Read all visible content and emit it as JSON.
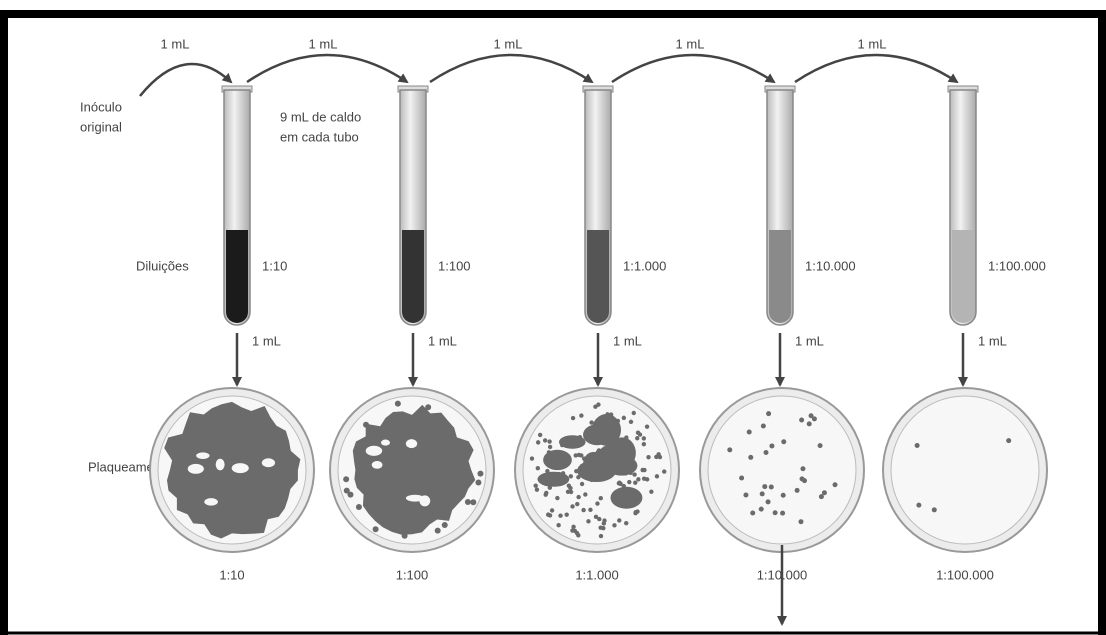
{
  "transfers": [
    "1 mL",
    "1 mL",
    "1 mL",
    "1 mL",
    "1 mL"
  ],
  "inoculum": [
    "Inóculo",
    "original"
  ],
  "broth_note": [
    "9 mL de caldo",
    "em cada tubo"
  ],
  "dilutions_label": "Diluições",
  "tubes": [
    {
      "label": "1:10",
      "transfer": "1 mL"
    },
    {
      "label": "1:100",
      "transfer": "1 mL"
    },
    {
      "label": "1:1.000",
      "transfer": "1 mL"
    },
    {
      "label": "1:10.000",
      "transfer": "1 mL"
    },
    {
      "label": "1:100.000",
      "transfer": "1 mL"
    }
  ],
  "plating_label": "Plaqueamento",
  "plates": [
    {
      "label": "1:10"
    },
    {
      "label": "1:100"
    },
    {
      "label": "1:1.000"
    },
    {
      "label": "1:10.000"
    },
    {
      "label": "1:100.000"
    }
  ]
}
